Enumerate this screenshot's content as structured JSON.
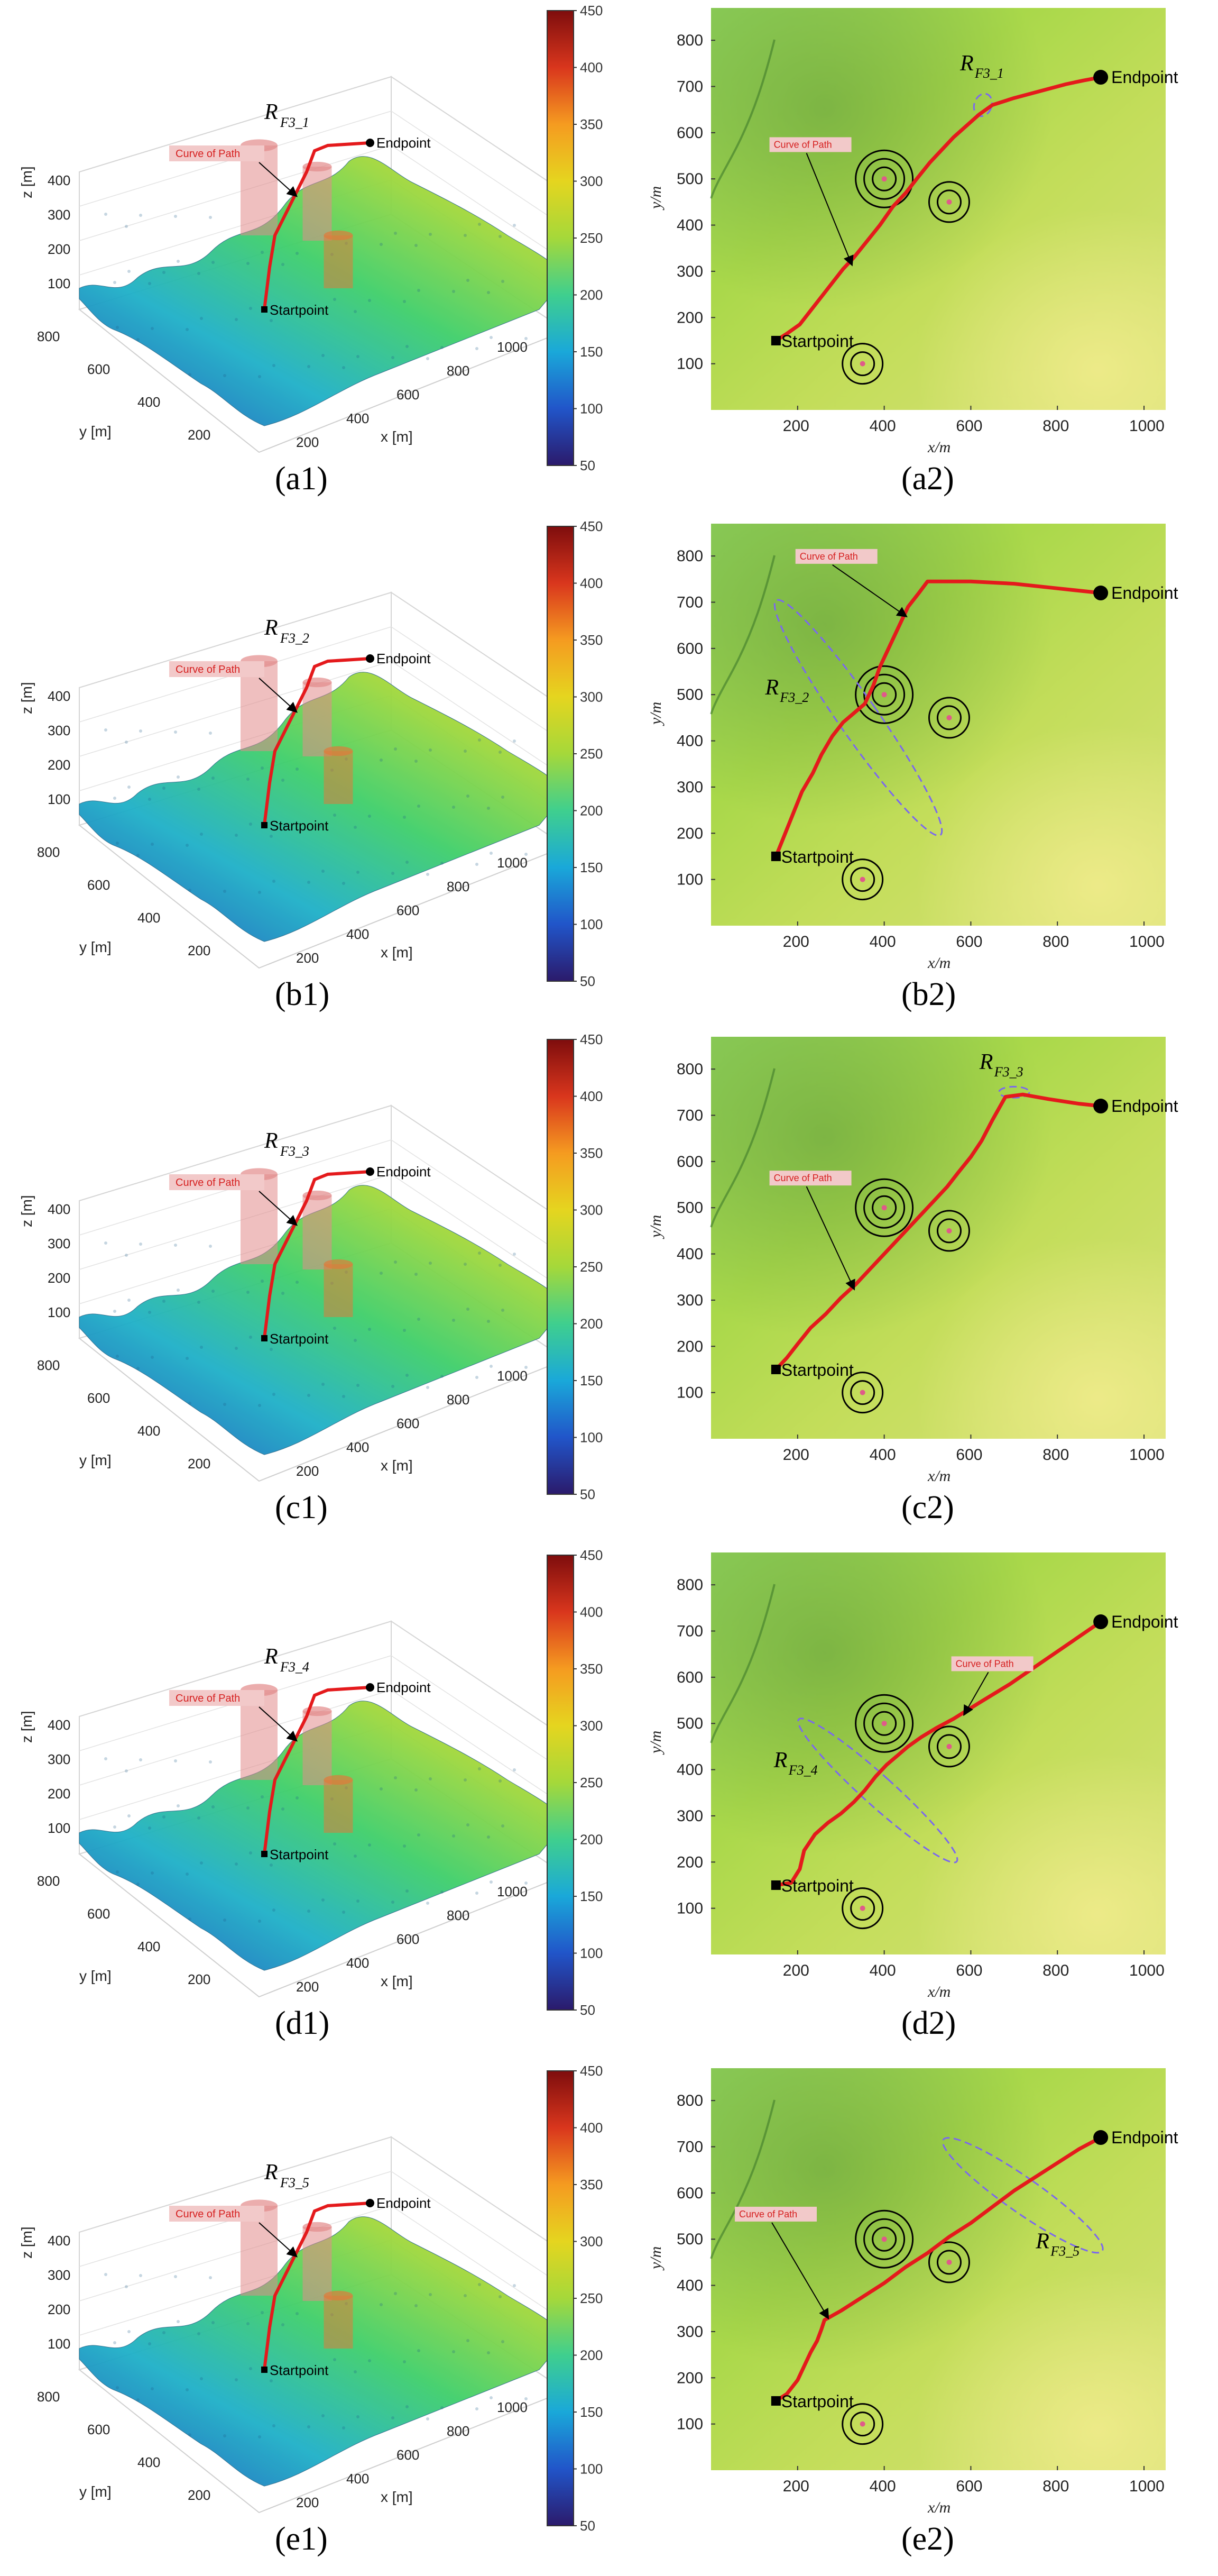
{
  "figure_title": "",
  "colorbar": {
    "min": 50,
    "max": 450,
    "ticks": [
      "50",
      "100",
      "150",
      "200",
      "250",
      "300",
      "350",
      "400",
      "450"
    ],
    "colors": [
      "#2b1a6b",
      "#2155c9",
      "#1aa8d9",
      "#3fcf8e",
      "#a5d83a",
      "#e5d51f",
      "#f59b20",
      "#d9361d",
      "#7e0d0d"
    ]
  },
  "colors": {
    "path": "#e41a1c",
    "ring": "#000000",
    "ellipse": "#7b68ee",
    "label_box": "#f2c9c9",
    "label_text": "#d62020",
    "cylinder_pink": "#e28a8a",
    "cylinder_orange": "#e07a3a"
  },
  "chart_data": [
    {
      "id": "a1",
      "type": "surface3d",
      "caption": "(a1)",
      "xlabel": "x [m]",
      "ylabel": "y [m]",
      "zlabel": "z [m]",
      "xticks": [
        "200",
        "400",
        "600",
        "800",
        "1000"
      ],
      "yticks": [
        "200",
        "400",
        "600",
        "800"
      ],
      "zticks": [
        "100",
        "200",
        "300",
        "400"
      ],
      "labels": {
        "start": "Startpoint",
        "end": "Endpoint",
        "curve": "Curve of Path",
        "region_main": "R",
        "region_sub": "F3_1"
      }
    },
    {
      "id": "a2",
      "type": "heatmap-path",
      "caption": "(a2)",
      "xlabel": "x/m",
      "ylabel": "y/m",
      "xlim": [
        0,
        1050
      ],
      "ylim": [
        0,
        870
      ],
      "xticks": [
        200,
        400,
        600,
        800,
        1000
      ],
      "yticks": [
        100,
        200,
        300,
        400,
        500,
        600,
        700,
        800
      ],
      "start": {
        "x": 150,
        "y": 150,
        "label": "Startpoint"
      },
      "end": {
        "x": 900,
        "y": 720,
        "label": "Endpoint"
      },
      "threats": [
        {
          "x": 400,
          "y": 500,
          "rings": 3
        },
        {
          "x": 550,
          "y": 450,
          "rings": 2
        },
        {
          "x": 350,
          "y": 100,
          "rings": 2
        }
      ],
      "path": [
        [
          150,
          150
        ],
        [
          175,
          165
        ],
        [
          205,
          185
        ],
        [
          230,
          215
        ],
        [
          255,
          245
        ],
        [
          280,
          275
        ],
        [
          305,
          305
        ],
        [
          330,
          330
        ],
        [
          360,
          365
        ],
        [
          390,
          400
        ],
        [
          420,
          440
        ],
        [
          450,
          470
        ],
        [
          475,
          500
        ],
        [
          505,
          535
        ],
        [
          535,
          565
        ],
        [
          560,
          590
        ],
        [
          590,
          615
        ],
        [
          620,
          640
        ],
        [
          650,
          660
        ],
        [
          700,
          675
        ],
        [
          760,
          690
        ],
        [
          820,
          705
        ],
        [
          860,
          713
        ],
        [
          900,
          720
        ]
      ],
      "curve_label": "Curve of Path",
      "curve_label_pos": {
        "x": 135,
        "y": 565
      },
      "curve_arrow_to": {
        "x": 325,
        "y": 315
      },
      "region": {
        "main": "R",
        "sub": "F3_1",
        "x": 575,
        "y": 735
      },
      "ellipse": {
        "cx": 628,
        "cy": 660,
        "rx": 20,
        "ry": 25,
        "angle": 20
      }
    },
    {
      "id": "b1",
      "type": "surface3d",
      "caption": "(b1)",
      "xlabel": "x [m]",
      "ylabel": "y [m]",
      "zlabel": "z [m]",
      "xticks": [
        "200",
        "400",
        "600",
        "800",
        "1000"
      ],
      "yticks": [
        "200",
        "400",
        "600",
        "800"
      ],
      "zticks": [
        "100",
        "200",
        "300",
        "400"
      ],
      "labels": {
        "start": "Startpoint",
        "end": "Endpoint",
        "curve": "Curve of Path",
        "region_main": "R",
        "region_sub": "F3_2"
      }
    },
    {
      "id": "b2",
      "type": "heatmap-path",
      "caption": "(b2)",
      "xlabel": "x/m",
      "ylabel": "y/m",
      "xlim": [
        0,
        1050
      ],
      "ylim": [
        0,
        870
      ],
      "xticks": [
        200,
        400,
        600,
        800,
        1000
      ],
      "yticks": [
        100,
        200,
        300,
        400,
        500,
        600,
        700,
        800
      ],
      "start": {
        "x": 150,
        "y": 150,
        "label": "Startpoint"
      },
      "end": {
        "x": 900,
        "y": 720,
        "label": "Endpoint"
      },
      "threats": [
        {
          "x": 400,
          "y": 500,
          "rings": 3
        },
        {
          "x": 550,
          "y": 450,
          "rings": 2
        },
        {
          "x": 350,
          "y": 100,
          "rings": 2
        }
      ],
      "path": [
        [
          150,
          150
        ],
        [
          165,
          185
        ],
        [
          180,
          220
        ],
        [
          195,
          255
        ],
        [
          210,
          290
        ],
        [
          235,
          330
        ],
        [
          255,
          370
        ],
        [
          280,
          410
        ],
        [
          305,
          440
        ],
        [
          330,
          460
        ],
        [
          355,
          480
        ],
        [
          375,
          520
        ],
        [
          390,
          560
        ],
        [
          410,
          600
        ],
        [
          430,
          640
        ],
        [
          455,
          690
        ],
        [
          480,
          720
        ],
        [
          500,
          745
        ],
        [
          600,
          745
        ],
        [
          700,
          740
        ],
        [
          800,
          730
        ],
        [
          900,
          720
        ]
      ],
      "curve_label": "Curve of Path",
      "curve_label_pos": {
        "x": 195,
        "y": 790
      },
      "curve_arrow_to": {
        "x": 450,
        "y": 670
      },
      "region": {
        "main": "R",
        "sub": "F3_2",
        "x": 125,
        "y": 500
      },
      "ellipse": {
        "cx": 340,
        "cy": 450,
        "rx": 45,
        "ry": 310,
        "angle": -35
      }
    },
    {
      "id": "c1",
      "type": "surface3d",
      "caption": "(c1)",
      "xlabel": "x [m]",
      "ylabel": "y [m]",
      "zlabel": "z [m]",
      "xticks": [
        "200",
        "400",
        "600",
        "800",
        "1000"
      ],
      "yticks": [
        "200",
        "400",
        "600",
        "800"
      ],
      "zticks": [
        "100",
        "200",
        "300",
        "400"
      ],
      "labels": {
        "start": "Startpoint",
        "end": "Endpoint",
        "curve": "Curve of Path",
        "region_main": "R",
        "region_sub": "F3_3"
      }
    },
    {
      "id": "c2",
      "type": "heatmap-path",
      "caption": "(c2)",
      "xlabel": "x/m",
      "ylabel": "y/m",
      "xlim": [
        0,
        1050
      ],
      "ylim": [
        0,
        870
      ],
      "xticks": [
        200,
        400,
        600,
        800,
        1000
      ],
      "yticks": [
        100,
        200,
        300,
        400,
        500,
        600,
        700,
        800
      ],
      "start": {
        "x": 150,
        "y": 150,
        "label": "Startpoint"
      },
      "end": {
        "x": 900,
        "y": 720,
        "label": "Endpoint"
      },
      "threats": [
        {
          "x": 400,
          "y": 500,
          "rings": 3
        },
        {
          "x": 550,
          "y": 450,
          "rings": 2
        },
        {
          "x": 350,
          "y": 100,
          "rings": 2
        }
      ],
      "path": [
        [
          150,
          150
        ],
        [
          175,
          175
        ],
        [
          200,
          205
        ],
        [
          230,
          240
        ],
        [
          265,
          270
        ],
        [
          300,
          305
        ],
        [
          335,
          335
        ],
        [
          365,
          365
        ],
        [
          395,
          395
        ],
        [
          425,
          425
        ],
        [
          455,
          455
        ],
        [
          485,
          485
        ],
        [
          515,
          515
        ],
        [
          545,
          545
        ],
        [
          570,
          575
        ],
        [
          600,
          610
        ],
        [
          625,
          645
        ],
        [
          650,
          690
        ],
        [
          680,
          740
        ],
        [
          720,
          745
        ],
        [
          780,
          735
        ],
        [
          850,
          725
        ],
        [
          900,
          720
        ]
      ],
      "curve_label": "Curve of Path",
      "curve_label_pos": {
        "x": 135,
        "y": 555
      },
      "curve_arrow_to": {
        "x": 330,
        "y": 325
      },
      "region": {
        "main": "R",
        "sub": "F3_3",
        "x": 620,
        "y": 800
      },
      "ellipse": {
        "cx": 700,
        "cy": 750,
        "rx": 35,
        "ry": 12,
        "angle": 0
      }
    },
    {
      "id": "d1",
      "type": "surface3d",
      "caption": "(d1)",
      "xlabel": "x [m]",
      "ylabel": "y [m]",
      "zlabel": "z [m]",
      "xticks": [
        "200",
        "400",
        "600",
        "800",
        "1000"
      ],
      "yticks": [
        "200",
        "400",
        "600",
        "800"
      ],
      "zticks": [
        "100",
        "200",
        "300",
        "400"
      ],
      "labels": {
        "start": "Startpoint",
        "end": "Endpoint",
        "curve": "Curve of Path",
        "region_main": "R",
        "region_sub": "F3_4"
      }
    },
    {
      "id": "d2",
      "type": "heatmap-path",
      "caption": "(d2)",
      "xlabel": "x/m",
      "ylabel": "y/m",
      "xlim": [
        0,
        1050
      ],
      "ylim": [
        0,
        870
      ],
      "xticks": [
        200,
        400,
        600,
        800,
        1000
      ],
      "yticks": [
        100,
        200,
        300,
        400,
        500,
        600,
        700,
        800
      ],
      "start": {
        "x": 150,
        "y": 150,
        "label": "Startpoint"
      },
      "end": {
        "x": 900,
        "y": 720,
        "label": "Endpoint"
      },
      "threats": [
        {
          "x": 400,
          "y": 500,
          "rings": 3
        },
        {
          "x": 550,
          "y": 450,
          "rings": 2
        },
        {
          "x": 350,
          "y": 100,
          "rings": 2
        }
      ],
      "path": [
        [
          150,
          150
        ],
        [
          185,
          155
        ],
        [
          205,
          185
        ],
        [
          215,
          225
        ],
        [
          240,
          260
        ],
        [
          270,
          285
        ],
        [
          300,
          305
        ],
        [
          330,
          330
        ],
        [
          355,
          355
        ],
        [
          380,
          385
        ],
        [
          405,
          410
        ],
        [
          430,
          430
        ],
        [
          455,
          450
        ],
        [
          485,
          470
        ],
        [
          520,
          490
        ],
        [
          560,
          510
        ],
        [
          620,
          545
        ],
        [
          690,
          585
        ],
        [
          760,
          630
        ],
        [
          830,
          675
        ],
        [
          900,
          720
        ]
      ],
      "curve_label": "Curve of Path",
      "curve_label_pos": {
        "x": 555,
        "y": 620
      },
      "curve_arrow_to": {
        "x": 585,
        "y": 520
      },
      "region": {
        "main": "R",
        "sub": "F3_4",
        "x": 145,
        "y": 405
      },
      "ellipse": {
        "cx": 385,
        "cy": 355,
        "rx": 35,
        "ry": 230,
        "angle": -48
      }
    },
    {
      "id": "e1",
      "type": "surface3d",
      "caption": "(e1)",
      "xlabel": "x [m]",
      "ylabel": "y [m]",
      "zlabel": "z [m]",
      "xticks": [
        "200",
        "400",
        "600",
        "800",
        "1000"
      ],
      "yticks": [
        "200",
        "400",
        "600",
        "800"
      ],
      "zticks": [
        "100",
        "200",
        "300",
        "400"
      ],
      "labels": {
        "start": "Startpoint",
        "end": "Endpoint",
        "curve": "Curve of Path",
        "region_main": "R",
        "region_sub": "F3_5"
      }
    },
    {
      "id": "e2",
      "type": "heatmap-path",
      "caption": "(e2)",
      "xlabel": "x/m",
      "ylabel": "y/m",
      "xlim": [
        0,
        1050
      ],
      "ylim": [
        0,
        870
      ],
      "xticks": [
        200,
        400,
        600,
        800,
        1000
      ],
      "yticks": [
        100,
        200,
        300,
        400,
        500,
        600,
        700,
        800
      ],
      "start": {
        "x": 150,
        "y": 150,
        "label": "Startpoint"
      },
      "end": {
        "x": 900,
        "y": 720,
        "label": "Endpoint"
      },
      "threats": [
        {
          "x": 400,
          "y": 500,
          "rings": 3
        },
        {
          "x": 550,
          "y": 450,
          "rings": 2
        },
        {
          "x": 350,
          "y": 100,
          "rings": 2
        }
      ],
      "path": [
        [
          150,
          150
        ],
        [
          175,
          165
        ],
        [
          200,
          195
        ],
        [
          215,
          225
        ],
        [
          230,
          255
        ],
        [
          245,
          280
        ],
        [
          255,
          305
        ],
        [
          262,
          325
        ],
        [
          300,
          345
        ],
        [
          350,
          375
        ],
        [
          400,
          405
        ],
        [
          450,
          440
        ],
        [
          500,
          470
        ],
        [
          550,
          505
        ],
        [
          600,
          535
        ],
        [
          650,
          570
        ],
        [
          700,
          605
        ],
        [
          750,
          635
        ],
        [
          800,
          665
        ],
        [
          850,
          695
        ],
        [
          900,
          720
        ]
      ],
      "curve_label": "Curve of Path",
      "curve_label_pos": {
        "x": 55,
        "y": 545
      },
      "curve_arrow_to": {
        "x": 270,
        "y": 330
      },
      "region": {
        "main": "R",
        "sub": "F3_5",
        "x": 750,
        "y": 480
      },
      "ellipse": {
        "cx": 720,
        "cy": 595,
        "rx": 40,
        "ry": 210,
        "angle": -55
      }
    }
  ]
}
